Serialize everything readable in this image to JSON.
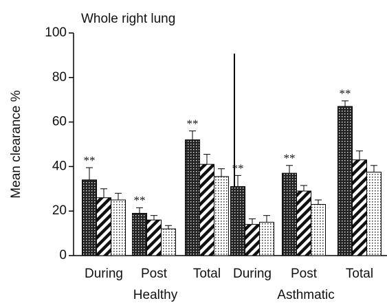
{
  "chart_data": {
    "type": "bar",
    "title": "Whole right lung",
    "y_label": "Mean clearance %",
    "categories": [
      "During",
      "Post",
      "Total",
      "During",
      "Post",
      "Total"
    ],
    "groups": [
      {
        "label": "Healthy",
        "categories": [
          0,
          1,
          2
        ]
      },
      {
        "label": "Asthmatic",
        "categories": [
          3,
          4,
          5
        ]
      }
    ],
    "series": [
      {
        "pattern": "dots-dark",
        "values": [
          34,
          19,
          52,
          31,
          37,
          67
        ],
        "errors": [
          5.5,
          2.5,
          4,
          5,
          3.5,
          2.5
        ],
        "markers": [
          "**",
          "**",
          "**",
          "**",
          "**",
          "**"
        ]
      },
      {
        "pattern": "stripes",
        "values": [
          26,
          16,
          41,
          14,
          29,
          43
        ],
        "errors": [
          4,
          2,
          4.5,
          2.5,
          2.5,
          4
        ]
      },
      {
        "pattern": "dots-light",
        "values": [
          25,
          12,
          35.5,
          15,
          23,
          37.5
        ],
        "errors": [
          3,
          1.5,
          3.5,
          3,
          2,
          3
        ]
      }
    ],
    "ylim": [
      0,
      100
    ],
    "yticks": [
      0,
      20,
      40,
      60,
      80,
      100
    ]
  }
}
